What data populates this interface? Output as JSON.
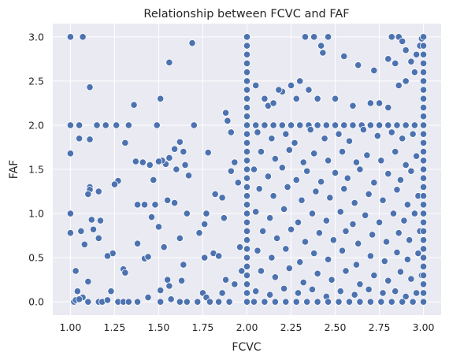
{
  "chart_data": {
    "type": "scatter",
    "title": "Relationship between FCVC and FAF",
    "xlabel": "FCVC",
    "ylabel": "FAF",
    "xlim": [
      0.9,
      3.1
    ],
    "ylim": [
      -0.15,
      3.15
    ],
    "xticks": [
      "1.00",
      "1.25",
      "1.50",
      "1.75",
      "2.00",
      "2.25",
      "2.50",
      "2.75",
      "3.00"
    ],
    "yticks": [
      "0.0",
      "0.5",
      "1.0",
      "1.5",
      "2.0",
      "2.5",
      "3.0"
    ],
    "grid": true,
    "background": "#eaeaf2",
    "point_color": "#4c72b0",
    "points": [
      [
        1.0,
        3.0
      ],
      [
        1.07,
        3.0
      ],
      [
        1.69,
        2.93
      ],
      [
        1.56,
        2.71
      ],
      [
        1.11,
        2.43
      ],
      [
        1.51,
        2.3
      ],
      [
        1.36,
        2.23
      ],
      [
        1.0,
        2.0
      ],
      [
        1.05,
        2.0
      ],
      [
        1.15,
        2.0
      ],
      [
        1.2,
        2.0
      ],
      [
        1.26,
        2.0
      ],
      [
        1.33,
        2.0
      ],
      [
        1.49,
        2.0
      ],
      [
        1.7,
        2.0
      ],
      [
        1.05,
        1.85
      ],
      [
        1.11,
        1.84
      ],
      [
        1.31,
        1.8
      ],
      [
        1.62,
        1.81
      ],
      [
        1.0,
        1.68
      ],
      [
        1.78,
        1.69
      ],
      [
        1.59,
        1.73
      ],
      [
        1.64,
        1.7
      ],
      [
        1.37,
        1.59
      ],
      [
        1.41,
        1.58
      ],
      [
        1.54,
        1.56
      ],
      [
        1.52,
        1.6
      ],
      [
        1.56,
        1.63
      ],
      [
        1.6,
        1.5
      ],
      [
        1.65,
        1.55
      ],
      [
        1.67,
        1.43
      ],
      [
        1.45,
        1.55
      ],
      [
        1.5,
        1.59
      ],
      [
        1.47,
        1.38
      ],
      [
        1.27,
        1.37
      ],
      [
        1.25,
        1.33
      ],
      [
        1.11,
        1.3
      ],
      [
        1.11,
        1.27
      ],
      [
        1.1,
        1.22
      ],
      [
        1.16,
        1.25
      ],
      [
        1.42,
        1.1
      ],
      [
        1.38,
        1.1
      ],
      [
        1.48,
        1.1
      ],
      [
        1.55,
        1.15
      ],
      [
        1.59,
        1.12
      ],
      [
        1.0,
        1.0
      ],
      [
        1.12,
        0.93
      ],
      [
        1.17,
        0.92
      ],
      [
        1.46,
        0.96
      ],
      [
        1.66,
        1.0
      ],
      [
        1.77,
        1.0
      ],
      [
        1.5,
        0.85
      ],
      [
        1.62,
        0.72
      ],
      [
        1.73,
        0.78
      ],
      [
        1.76,
        0.88
      ],
      [
        1.0,
        0.78
      ],
      [
        1.06,
        0.8
      ],
      [
        1.13,
        0.82
      ],
      [
        1.08,
        0.65
      ],
      [
        1.16,
        0.72
      ],
      [
        1.24,
        0.55
      ],
      [
        1.38,
        0.66
      ],
      [
        1.21,
        0.52
      ],
      [
        1.53,
        0.62
      ],
      [
        1.42,
        0.49
      ],
      [
        1.44,
        0.51
      ],
      [
        1.81,
        0.55
      ],
      [
        1.76,
        0.5
      ],
      [
        1.64,
        0.42
      ],
      [
        1.3,
        0.37
      ],
      [
        1.31,
        0.33
      ],
      [
        1.03,
        0.35
      ],
      [
        1.1,
        0.23
      ],
      [
        1.23,
        0.12
      ],
      [
        1.55,
        0.25
      ],
      [
        1.63,
        0.24
      ],
      [
        1.56,
        0.18
      ],
      [
        1.51,
        0.13
      ],
      [
        1.75,
        0.1
      ],
      [
        1.04,
        0.12
      ],
      [
        1.07,
        0.05
      ],
      [
        1.02,
        0.0
      ],
      [
        1.03,
        0.02
      ],
      [
        1.05,
        0.03
      ],
      [
        1.1,
        0.0
      ],
      [
        1.16,
        0.0
      ],
      [
        1.18,
        0.0
      ],
      [
        1.21,
        0.02
      ],
      [
        1.27,
        0.0
      ],
      [
        1.3,
        0.0
      ],
      [
        1.33,
        0.0
      ],
      [
        1.38,
        0.0
      ],
      [
        1.44,
        0.05
      ],
      [
        1.51,
        0.0
      ],
      [
        1.57,
        0.03
      ],
      [
        1.62,
        0.0
      ],
      [
        1.66,
        0.0
      ],
      [
        1.72,
        0.0
      ],
      [
        1.77,
        0.05
      ],
      [
        1.79,
        0.0
      ],
      [
        1.84,
        0.0
      ],
      [
        1.86,
        0.1
      ],
      [
        1.9,
        0.0
      ],
      [
        1.88,
        0.25
      ],
      [
        1.84,
        0.52
      ],
      [
        1.87,
        0.95
      ],
      [
        1.91,
        1.48
      ],
      [
        1.82,
        1.22
      ],
      [
        1.86,
        1.18
      ],
      [
        1.88,
        2.14
      ],
      [
        1.89,
        2.05
      ],
      [
        1.91,
        1.92
      ],
      [
        1.93,
        1.58
      ],
      [
        1.95,
        1.35
      ],
      [
        1.96,
        0.62
      ],
      [
        1.97,
        0.35
      ],
      [
        1.93,
        0.2
      ],
      [
        2.0,
        3.0
      ],
      [
        2.0,
        2.9
      ],
      [
        2.0,
        2.8
      ],
      [
        2.0,
        2.7
      ],
      [
        2.0,
        2.6
      ],
      [
        2.0,
        2.5
      ],
      [
        2.0,
        2.4
      ],
      [
        2.0,
        2.3
      ],
      [
        2.0,
        2.2
      ],
      [
        2.0,
        2.1
      ],
      [
        2.0,
        2.0
      ],
      [
        2.0,
        1.9
      ],
      [
        2.0,
        1.8
      ],
      [
        2.0,
        1.7
      ],
      [
        2.0,
        1.6
      ],
      [
        2.0,
        1.5
      ],
      [
        2.0,
        1.4
      ],
      [
        2.0,
        1.3
      ],
      [
        2.0,
        1.2
      ],
      [
        2.0,
        1.1
      ],
      [
        2.0,
        1.0
      ],
      [
        2.0,
        0.9
      ],
      [
        2.0,
        0.8
      ],
      [
        2.0,
        0.7
      ],
      [
        2.0,
        0.6
      ],
      [
        2.0,
        0.5
      ],
      [
        2.0,
        0.4
      ],
      [
        2.0,
        0.3
      ],
      [
        2.0,
        0.2
      ],
      [
        2.0,
        0.1
      ],
      [
        2.0,
        0.0
      ],
      [
        2.33,
        3.0
      ],
      [
        2.38,
        3.0
      ],
      [
        2.46,
        3.0
      ],
      [
        2.42,
        2.9
      ],
      [
        2.43,
        2.82
      ],
      [
        2.55,
        2.78
      ],
      [
        2.63,
        2.68
      ],
      [
        2.82,
        3.0
      ],
      [
        2.86,
        3.0
      ],
      [
        2.88,
        2.95
      ],
      [
        2.9,
        2.85
      ],
      [
        2.8,
        2.75
      ],
      [
        2.84,
        2.7
      ],
      [
        2.72,
        2.62
      ],
      [
        2.93,
        2.72
      ],
      [
        2.96,
        2.8
      ],
      [
        2.98,
        2.9
      ],
      [
        2.99,
        2.98
      ],
      [
        2.9,
        2.5
      ],
      [
        2.95,
        2.6
      ],
      [
        2.86,
        2.45
      ],
      [
        2.3,
        2.5
      ],
      [
        2.25,
        2.45
      ],
      [
        2.2,
        2.38
      ],
      [
        2.05,
        2.45
      ],
      [
        2.1,
        2.3
      ],
      [
        2.18,
        2.4
      ],
      [
        2.12,
        2.22
      ],
      [
        2.28,
        2.3
      ],
      [
        2.35,
        2.4
      ],
      [
        2.15,
        2.25
      ],
      [
        2.4,
        2.3
      ],
      [
        2.5,
        2.3
      ],
      [
        2.6,
        2.22
      ],
      [
        2.7,
        2.25
      ],
      [
        2.75,
        2.25
      ],
      [
        2.8,
        2.2
      ],
      [
        2.05,
        2.0
      ],
      [
        2.1,
        2.0
      ],
      [
        2.15,
        2.0
      ],
      [
        2.2,
        2.0
      ],
      [
        2.25,
        2.0
      ],
      [
        2.3,
        2.0
      ],
      [
        2.35,
        2.0
      ],
      [
        2.4,
        2.0
      ],
      [
        2.45,
        2.0
      ],
      [
        2.5,
        2.0
      ],
      [
        2.55,
        2.0
      ],
      [
        2.6,
        2.0
      ],
      [
        2.65,
        2.0
      ],
      [
        2.7,
        2.0
      ],
      [
        2.75,
        2.0
      ],
      [
        2.8,
        2.0
      ],
      [
        2.85,
        2.0
      ],
      [
        2.9,
        2.0
      ],
      [
        2.95,
        2.0
      ],
      [
        2.06,
        1.92
      ],
      [
        2.14,
        1.85
      ],
      [
        2.22,
        1.9
      ],
      [
        2.27,
        1.8
      ],
      [
        2.36,
        1.95
      ],
      [
        2.44,
        1.85
      ],
      [
        2.52,
        1.9
      ],
      [
        2.58,
        1.82
      ],
      [
        2.66,
        1.95
      ],
      [
        2.74,
        1.88
      ],
      [
        2.82,
        1.92
      ],
      [
        2.88,
        1.85
      ],
      [
        2.94,
        1.9
      ],
      [
        2.08,
        1.7
      ],
      [
        2.16,
        1.62
      ],
      [
        2.24,
        1.72
      ],
      [
        2.32,
        1.58
      ],
      [
        2.38,
        1.68
      ],
      [
        2.46,
        1.6
      ],
      [
        2.54,
        1.7
      ],
      [
        2.62,
        1.58
      ],
      [
        2.68,
        1.66
      ],
      [
        2.76,
        1.6
      ],
      [
        2.84,
        1.7
      ],
      [
        2.9,
        1.55
      ],
      [
        2.96,
        1.65
      ],
      [
        2.04,
        1.5
      ],
      [
        2.12,
        1.42
      ],
      [
        2.2,
        1.52
      ],
      [
        2.28,
        1.38
      ],
      [
        2.34,
        1.48
      ],
      [
        2.42,
        1.36
      ],
      [
        2.5,
        1.46
      ],
      [
        2.57,
        1.4
      ],
      [
        2.64,
        1.5
      ],
      [
        2.72,
        1.35
      ],
      [
        2.8,
        1.45
      ],
      [
        2.87,
        1.38
      ],
      [
        2.93,
        1.48
      ],
      [
        2.07,
        1.28
      ],
      [
        2.15,
        1.2
      ],
      [
        2.23,
        1.3
      ],
      [
        2.31,
        1.15
      ],
      [
        2.39,
        1.25
      ],
      [
        2.47,
        1.18
      ],
      [
        2.55,
        1.28
      ],
      [
        2.61,
        1.12
      ],
      [
        2.69,
        1.22
      ],
      [
        2.77,
        1.15
      ],
      [
        2.85,
        1.27
      ],
      [
        2.91,
        1.1
      ],
      [
        2.97,
        1.2
      ],
      [
        2.05,
        1.02
      ],
      [
        2.13,
        0.95
      ],
      [
        2.21,
        1.05
      ],
      [
        2.29,
        0.9
      ],
      [
        2.37,
        1.0
      ],
      [
        2.45,
        0.92
      ],
      [
        2.53,
        1.02
      ],
      [
        2.6,
        0.88
      ],
      [
        2.67,
        0.98
      ],
      [
        2.75,
        0.9
      ],
      [
        2.83,
        1.0
      ],
      [
        2.89,
        0.92
      ],
      [
        2.95,
        1.0
      ],
      [
        2.09,
        0.8
      ],
      [
        2.17,
        0.72
      ],
      [
        2.25,
        0.82
      ],
      [
        2.33,
        0.68
      ],
      [
        2.41,
        0.78
      ],
      [
        2.49,
        0.7
      ],
      [
        2.56,
        0.8
      ],
      [
        2.63,
        0.66
      ],
      [
        2.71,
        0.76
      ],
      [
        2.79,
        0.68
      ],
      [
        2.86,
        0.78
      ],
      [
        2.92,
        0.7
      ],
      [
        2.98,
        0.8
      ],
      [
        2.06,
        0.58
      ],
      [
        2.14,
        0.5
      ],
      [
        2.22,
        0.6
      ],
      [
        2.3,
        0.45
      ],
      [
        2.38,
        0.55
      ],
      [
        2.46,
        0.48
      ],
      [
        2.54,
        0.58
      ],
      [
        2.62,
        0.42
      ],
      [
        2.7,
        0.52
      ],
      [
        2.78,
        0.46
      ],
      [
        2.85,
        0.56
      ],
      [
        2.91,
        0.48
      ],
      [
        2.97,
        0.55
      ],
      [
        2.08,
        0.35
      ],
      [
        2.16,
        0.28
      ],
      [
        2.24,
        0.38
      ],
      [
        2.32,
        0.22
      ],
      [
        2.4,
        0.32
      ],
      [
        2.48,
        0.25
      ],
      [
        2.56,
        0.35
      ],
      [
        2.64,
        0.2
      ],
      [
        2.72,
        0.3
      ],
      [
        2.8,
        0.24
      ],
      [
        2.87,
        0.34
      ],
      [
        2.93,
        0.26
      ],
      [
        2.99,
        0.3
      ],
      [
        2.05,
        0.12
      ],
      [
        2.13,
        0.08
      ],
      [
        2.21,
        0.15
      ],
      [
        2.29,
        0.1
      ],
      [
        2.37,
        0.14
      ],
      [
        2.45,
        0.06
      ],
      [
        2.53,
        0.12
      ],
      [
        2.61,
        0.08
      ],
      [
        2.69,
        0.14
      ],
      [
        2.77,
        0.1
      ],
      [
        2.84,
        0.12
      ],
      [
        2.9,
        0.06
      ],
      [
        2.96,
        0.1
      ],
      [
        2.04,
        0.0
      ],
      [
        2.1,
        0.0
      ],
      [
        2.16,
        0.0
      ],
      [
        2.22,
        0.0
      ],
      [
        2.28,
        0.0
      ],
      [
        2.34,
        0.0
      ],
      [
        2.4,
        0.0
      ],
      [
        2.46,
        0.0
      ],
      [
        2.52,
        0.0
      ],
      [
        2.58,
        0.0
      ],
      [
        2.64,
        0.0
      ],
      [
        2.7,
        0.0
      ],
      [
        2.76,
        0.0
      ],
      [
        2.82,
        0.0
      ],
      [
        2.88,
        0.0
      ],
      [
        2.94,
        0.0
      ],
      [
        3.0,
        3.0
      ],
      [
        3.0,
        2.9
      ],
      [
        3.0,
        2.8
      ],
      [
        3.0,
        2.7
      ],
      [
        3.0,
        2.6
      ],
      [
        3.0,
        2.5
      ],
      [
        3.0,
        2.4
      ],
      [
        3.0,
        2.3
      ],
      [
        3.0,
        2.2
      ],
      [
        3.0,
        2.1
      ],
      [
        3.0,
        2.0
      ],
      [
        3.0,
        1.9
      ],
      [
        3.0,
        1.8
      ],
      [
        3.0,
        1.7
      ],
      [
        3.0,
        1.6
      ],
      [
        3.0,
        1.5
      ],
      [
        3.0,
        1.4
      ],
      [
        3.0,
        1.3
      ],
      [
        3.0,
        1.2
      ],
      [
        3.0,
        1.1
      ],
      [
        3.0,
        1.0
      ],
      [
        3.0,
        0.9
      ],
      [
        3.0,
        0.8
      ],
      [
        3.0,
        0.7
      ],
      [
        3.0,
        0.6
      ],
      [
        3.0,
        0.5
      ],
      [
        3.0,
        0.4
      ],
      [
        3.0,
        0.3
      ],
      [
        3.0,
        0.2
      ],
      [
        3.0,
        0.1
      ],
      [
        3.0,
        0.0
      ]
    ]
  }
}
